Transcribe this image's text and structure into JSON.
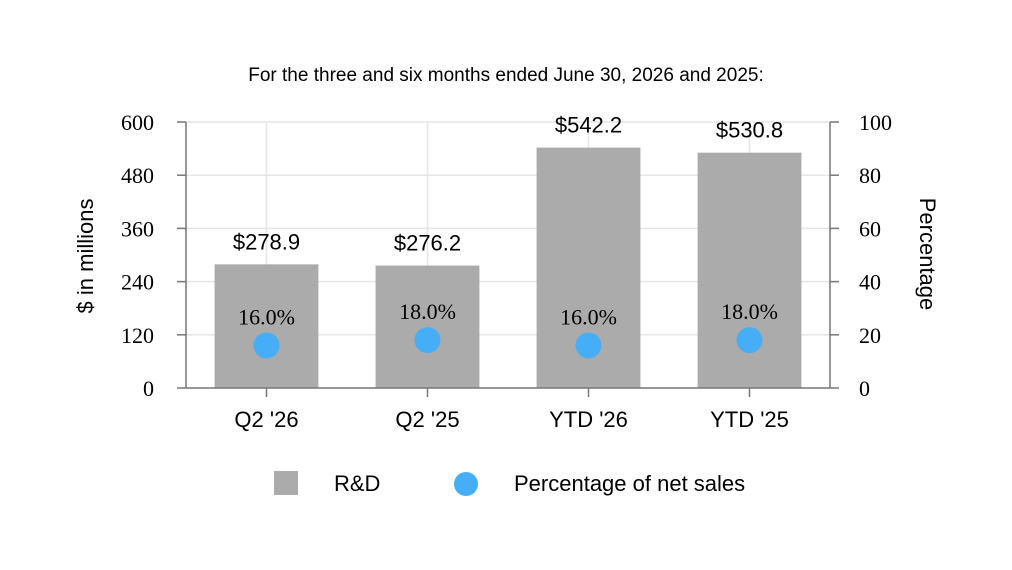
{
  "chart_data": {
    "type": "bar",
    "title": "For the three and six months ended June 30, 2026 and 2025:",
    "categories": [
      "Q2 '26",
      "Q2 '25",
      "YTD '26",
      "YTD '25"
    ],
    "left_axis": {
      "label": "$ in millions",
      "range": [
        0,
        600
      ],
      "ticks": [
        0,
        120,
        240,
        360,
        480,
        600
      ],
      "tick_labels": [
        "0",
        "120",
        "240",
        "360",
        "480",
        "600"
      ]
    },
    "right_axis": {
      "label": "Percentage",
      "range": [
        0,
        100
      ],
      "ticks": [
        0,
        20,
        40,
        60,
        80,
        100
      ],
      "tick_labels": [
        "0",
        "20",
        "40",
        "60",
        "80",
        "100"
      ]
    },
    "series": [
      {
        "name": "R&D",
        "type": "bar",
        "axis": "left",
        "color": "#ababab",
        "values": [
          278.9,
          276.2,
          542.2,
          530.8
        ],
        "labels": [
          "$278.9",
          "$276.2",
          "$542.2",
          "$530.8"
        ]
      },
      {
        "name": "Percentage of net sales",
        "type": "scatter",
        "axis": "right",
        "color": "#45aef7",
        "values": [
          16.0,
          18.0,
          16.0,
          18.0
        ],
        "labels": [
          "16.0%",
          "18.0%",
          "16.0%",
          "18.0%"
        ]
      }
    ],
    "grid": true,
    "legend_position": "bottom-center"
  }
}
